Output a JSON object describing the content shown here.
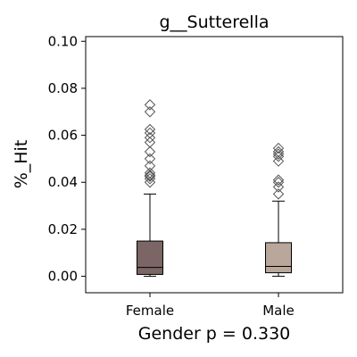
{
  "chart_data": {
    "type": "box",
    "title": "g__Sutterella",
    "xlabel": "Gender p = 0.330",
    "ylabel": "%_Hit",
    "ylim": [
      -0.007,
      0.102
    ],
    "yticks": [
      0.0,
      0.02,
      0.04,
      0.06,
      0.08,
      0.1
    ],
    "ytick_labels": [
      "0.00",
      "0.02",
      "0.04",
      "0.06",
      "0.08",
      "0.10"
    ],
    "grid": false,
    "legend": "none",
    "categories": [
      "Female",
      "Male"
    ],
    "boxes": [
      {
        "name": "Female",
        "color": "#7b6565",
        "whisker_low": 0.0,
        "q1": 0.0008,
        "median": 0.0038,
        "q3": 0.015,
        "whisker_high": 0.035,
        "outliers": [
          0.04,
          0.0415,
          0.0425,
          0.043,
          0.044,
          0.047,
          0.05,
          0.053,
          0.057,
          0.059,
          0.061,
          0.0625,
          0.07,
          0.073
        ]
      },
      {
        "name": "Male",
        "color": "#b8a79a",
        "whisker_low": 0.0,
        "q1": 0.0015,
        "median": 0.0042,
        "q3": 0.0143,
        "whisker_high": 0.032,
        "outliers": [
          0.035,
          0.038,
          0.04,
          0.041,
          0.049,
          0.051,
          0.052,
          0.053,
          0.0545
        ]
      }
    ]
  }
}
